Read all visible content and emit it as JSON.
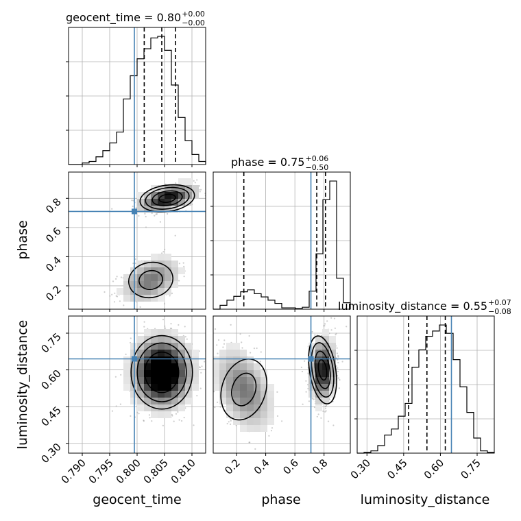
{
  "chart_data": {
    "type": "corner",
    "parameters": [
      "geocent_time",
      "phase",
      "luminosity_distance"
    ],
    "colors": {
      "truth": "#4682b4",
      "hist": "#000000",
      "grid": "#b0b0b0",
      "points": "#909090"
    },
    "truths": {
      "geocent_time": 0.7995,
      "phase": 0.71,
      "luminosity_distance": 0.645
    },
    "panels": {
      "geocent_time": {
        "title_main": "geocent_time = 0.80",
        "title_sup": "+0.00",
        "title_sub": "−0.00",
        "range": [
          0.7875,
          0.8125
        ],
        "xlabel": "geocent_time",
        "ticks": [
          0.79,
          0.795,
          0.8,
          0.805,
          0.81
        ],
        "tick_labels": [
          "0.790",
          "0.795",
          "0.800",
          "0.805",
          "0.810"
        ],
        "quantiles": [
          0.8013,
          0.8045,
          0.807
        ],
        "hist_values": [
          0,
          0,
          2,
          4,
          10,
          18,
          28,
          42,
          85,
          115,
          137,
          150,
          164,
          166,
          148,
          103,
          61,
          31,
          13,
          4
        ]
      },
      "phase": {
        "title_main": "phase = 0.75",
        "title_sup": "+0.06",
        "title_sub": "−0.50",
        "range": [
          0.04,
          0.98
        ],
        "xlabel": "phase",
        "ylabel": "phase",
        "ticks": [
          0.2,
          0.4,
          0.6,
          0.8
        ],
        "tick_labels": [
          "0.2",
          "0.4",
          "0.6",
          "0.8"
        ],
        "quantiles": [
          0.25,
          0.75,
          0.81
        ],
        "hist_values": [
          0,
          6,
          14,
          20,
          27,
          30,
          24,
          19,
          14,
          9,
          2,
          2,
          1,
          3,
          28,
          86,
          170,
          199,
          48,
          10
        ]
      },
      "luminosity_distance": {
        "title_main": "luminosity_distance = 0.55",
        "title_sup": "+0.07",
        "title_sub": "−0.08",
        "range": [
          0.26,
          0.82
        ],
        "xlabel": "luminosity_distance",
        "ylabel": "luminosity_distance",
        "ticks": [
          0.3,
          0.45,
          0.6,
          0.75
        ],
        "tick_labels": [
          "0.30",
          "0.45",
          "0.60",
          "0.75"
        ],
        "quantiles": [
          0.47,
          0.545,
          0.62
        ],
        "hist_values": [
          0,
          1,
          3,
          10,
          24,
          32,
          49,
          66,
          114,
          137,
          155,
          162,
          170,
          159,
          124,
          88,
          54,
          20,
          3,
          1
        ]
      }
    },
    "pairs": [
      {
        "x": "geocent_time",
        "y": "phase",
        "modes": [
          {
            "center": [
              0.8055,
              0.8
            ],
            "spread": [
              0.0025,
              0.045
            ],
            "corr": 0.5,
            "weight": 0.65
          },
          {
            "center": [
              0.8025,
              0.24
            ],
            "spread": [
              0.0027,
              0.08
            ],
            "corr": 0.4,
            "weight": 0.35
          }
        ]
      },
      {
        "x": "geocent_time",
        "y": "luminosity_distance",
        "modes": [
          {
            "center": [
              0.8045,
              0.59
            ],
            "spread": [
              0.0028,
              0.075
            ],
            "corr": 0.0,
            "weight": 1.0
          }
        ]
      },
      {
        "x": "phase",
        "y": "luminosity_distance",
        "modes": [
          {
            "center": [
              0.79,
              0.6
            ],
            "spread": [
              0.045,
              0.07
            ],
            "corr": 0.1,
            "weight": 0.65
          },
          {
            "center": [
              0.25,
              0.52
            ],
            "spread": [
              0.1,
              0.085
            ],
            "corr": -0.4,
            "weight": 0.35
          }
        ]
      }
    ]
  }
}
